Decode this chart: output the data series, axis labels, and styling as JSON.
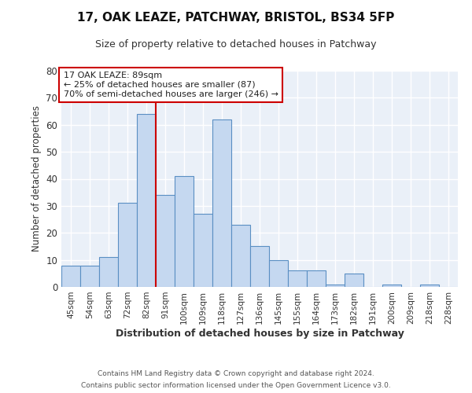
{
  "title": "17, OAK LEAZE, PATCHWAY, BRISTOL, BS34 5FP",
  "subtitle": "Size of property relative to detached houses in Patchway",
  "xlabel": "Distribution of detached houses by size in Patchway",
  "ylabel": "Number of detached properties",
  "bin_labels": [
    "45sqm",
    "54sqm",
    "63sqm",
    "72sqm",
    "82sqm",
    "91sqm",
    "100sqm",
    "109sqm",
    "118sqm",
    "127sqm",
    "136sqm",
    "145sqm",
    "155sqm",
    "164sqm",
    "173sqm",
    "182sqm",
    "191sqm",
    "200sqm",
    "209sqm",
    "218sqm",
    "228sqm"
  ],
  "bar_values": [
    8,
    8,
    11,
    31,
    64,
    34,
    41,
    27,
    62,
    23,
    15,
    10,
    6,
    6,
    1,
    5,
    0,
    1,
    0,
    1,
    0
  ],
  "bar_color": "#c5d8f0",
  "bar_edge_color": "#5a8fc3",
  "vline_x": 4.5,
  "vline_color": "#cc0000",
  "ylim": [
    0,
    80
  ],
  "yticks": [
    0,
    10,
    20,
    30,
    40,
    50,
    60,
    70,
    80
  ],
  "annotation_title": "17 OAK LEAZE: 89sqm",
  "annotation_line1": "← 25% of detached houses are smaller (87)",
  "annotation_line2": "70% of semi-detached houses are larger (246) →",
  "annotation_box_color": "#ffffff",
  "annotation_box_edge": "#cc0000",
  "footer1": "Contains HM Land Registry data © Crown copyright and database right 2024.",
  "footer2": "Contains public sector information licensed under the Open Government Licence v3.0.",
  "bg_color": "#ffffff",
  "plot_bg_color": "#eaf0f8"
}
